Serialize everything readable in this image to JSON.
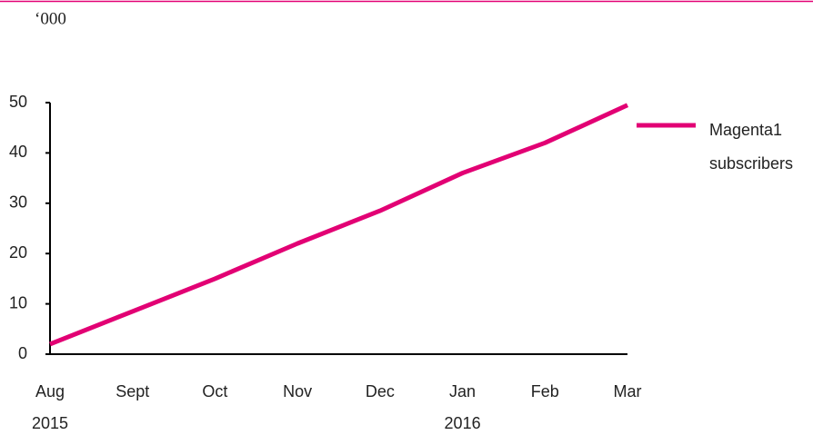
{
  "chart_data": {
    "type": "line",
    "unit_label": "‘000",
    "categories": [
      "Aug",
      "Sept",
      "Oct",
      "Nov",
      "Dec",
      "Jan",
      "Feb",
      "Mar"
    ],
    "years": [
      "2015",
      null,
      null,
      null,
      null,
      "2016",
      null,
      null
    ],
    "series": [
      {
        "name": "Magenta1 subscribers",
        "color": "#e20074",
        "values": [
          2,
          8.5,
          15,
          22,
          28.5,
          36,
          42,
          49.5
        ]
      }
    ],
    "ylim": [
      0,
      50
    ],
    "yticks": [
      0,
      10,
      20,
      30,
      40,
      50
    ],
    "grid": false,
    "legend": "right"
  }
}
